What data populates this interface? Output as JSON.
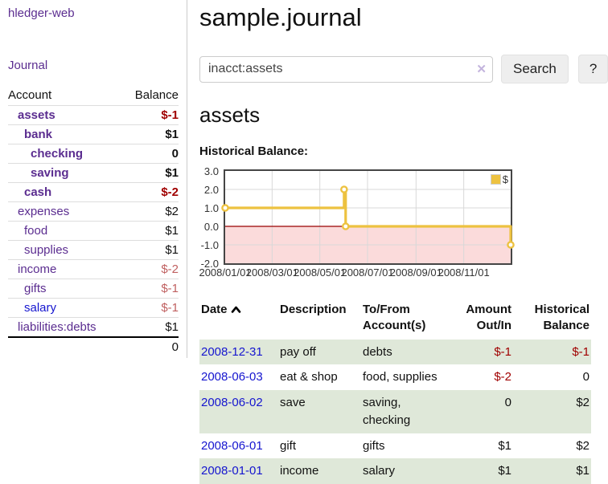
{
  "sidebar": {
    "brand": "hledger-web",
    "nav_journal": "Journal",
    "accounts_table": {
      "col_account": "Account",
      "col_balance": "Balance",
      "rows": [
        {
          "name": "assets",
          "depth": 1,
          "bold": true,
          "balance": "$-1",
          "balance_style": "neg"
        },
        {
          "name": "bank",
          "depth": 2,
          "bold": true,
          "balance": "$1",
          "balance_style": "pos"
        },
        {
          "name": "checking",
          "depth": 3,
          "bold": true,
          "balance": "0",
          "balance_style": "pos"
        },
        {
          "name": "saving",
          "depth": 3,
          "bold": true,
          "balance": "$1",
          "balance_style": "pos"
        },
        {
          "name": "cash",
          "depth": 2,
          "bold": true,
          "balance": "$-2",
          "balance_style": "neg"
        },
        {
          "name": "expenses",
          "depth": 1,
          "bold": false,
          "balance": "$2",
          "balance_style": "pos"
        },
        {
          "name": "food",
          "depth": 2,
          "bold": false,
          "balance": "$1",
          "balance_style": "pos"
        },
        {
          "name": "supplies",
          "depth": 2,
          "bold": false,
          "balance": "$1",
          "balance_style": "pos"
        },
        {
          "name": "income",
          "depth": 1,
          "bold": false,
          "balance": "$-2",
          "balance_style": "neg-soft"
        },
        {
          "name": "gifts",
          "depth": 2,
          "bold": false,
          "balance": "$-1",
          "balance_style": "neg-soft"
        },
        {
          "name": "salary",
          "depth": 2,
          "bold": false,
          "balance": "$-1",
          "balance_style": "neg-soft",
          "link_color": "blue"
        },
        {
          "name": "liabilities:debts",
          "depth": 1,
          "bold": false,
          "balance": "$1",
          "balance_style": "pos"
        }
      ],
      "total": "0"
    }
  },
  "main": {
    "title": "sample.journal",
    "search": {
      "value": "inacct:assets",
      "clear_icon": "✕",
      "button": "Search",
      "help_button": "?"
    },
    "account_heading": "assets",
    "chart_heading": "Historical Balance:"
  },
  "chart_data": {
    "type": "line",
    "step": true,
    "title": "Historical Balance:",
    "xlim": [
      "2008-01-01",
      "2008-12-31"
    ],
    "ylim": [
      -2,
      3
    ],
    "y_ticks": [
      {
        "label": "3.0",
        "value": 3
      },
      {
        "label": "2.0",
        "value": 2
      },
      {
        "label": "1.0",
        "value": 1
      },
      {
        "label": "0.0",
        "value": 0
      },
      {
        "label": "-1.0",
        "value": -1
      },
      {
        "label": "-2.0",
        "value": -2
      }
    ],
    "x_ticks": [
      {
        "label": "2008/01/01",
        "date": "2008-01-01"
      },
      {
        "label": "2008/03/01",
        "date": "2008-03-01"
      },
      {
        "label": "2008/05/01",
        "date": "2008-05-01"
      },
      {
        "label": "2008/07/01",
        "date": "2008-07-01"
      },
      {
        "label": "2008/09/01",
        "date": "2008-09-01"
      },
      {
        "label": "2008/11/01",
        "date": "2008-11-01"
      }
    ],
    "series": [
      {
        "name": "$",
        "color": "#EDC240",
        "points": [
          {
            "date": "2008-01-01",
            "value": 1
          },
          {
            "date": "2008-06-01",
            "value": 2
          },
          {
            "date": "2008-06-03",
            "value": 0
          },
          {
            "date": "2008-12-31",
            "value": -1
          }
        ]
      }
    ],
    "legend": {
      "label": "$",
      "position": "top-right"
    },
    "grid": true,
    "negative_region_color": "#fbdbdb",
    "zero_line_color": "#990000"
  },
  "register_table": {
    "headers": {
      "date": "Date",
      "sort_icon": "chevron-up",
      "description": "Description",
      "tofrom": "To/From Account(s)",
      "amount": "Amount Out/In",
      "historical": "Historical Balance"
    },
    "rows": [
      {
        "date": "2008-12-31",
        "description": "pay off",
        "accounts": "debts",
        "amount": "$-1",
        "amount_neg": true,
        "balance": "$-1",
        "balance_neg": true,
        "shaded": true
      },
      {
        "date": "2008-06-03",
        "description": "eat & shop",
        "accounts": "food, supplies",
        "amount": "$-2",
        "amount_neg": true,
        "balance": "0",
        "balance_neg": false,
        "shaded": false
      },
      {
        "date": "2008-06-02",
        "description": "save",
        "accounts": "saving, checking",
        "amount": "0",
        "amount_neg": false,
        "balance": "$2",
        "balance_neg": false,
        "shaded": true
      },
      {
        "date": "2008-06-01",
        "description": "gift",
        "accounts": "gifts",
        "amount": "$1",
        "amount_neg": false,
        "balance": "$2",
        "balance_neg": false,
        "shaded": false
      },
      {
        "date": "2008-01-01",
        "description": "income",
        "accounts": "salary",
        "amount": "$1",
        "amount_neg": false,
        "balance": "$1",
        "balance_neg": false,
        "shaded": true
      }
    ]
  },
  "colors": {
    "link_purple": "#5b2d90",
    "link_blue": "#1515cf",
    "negative_strong": "#a00000",
    "negative_soft": "#c06060",
    "row_shade_green": "#dfe8d9",
    "series_gold": "#EDC240",
    "negative_region_pink": "#fbdbdb",
    "zero_line_red": "#990000"
  }
}
